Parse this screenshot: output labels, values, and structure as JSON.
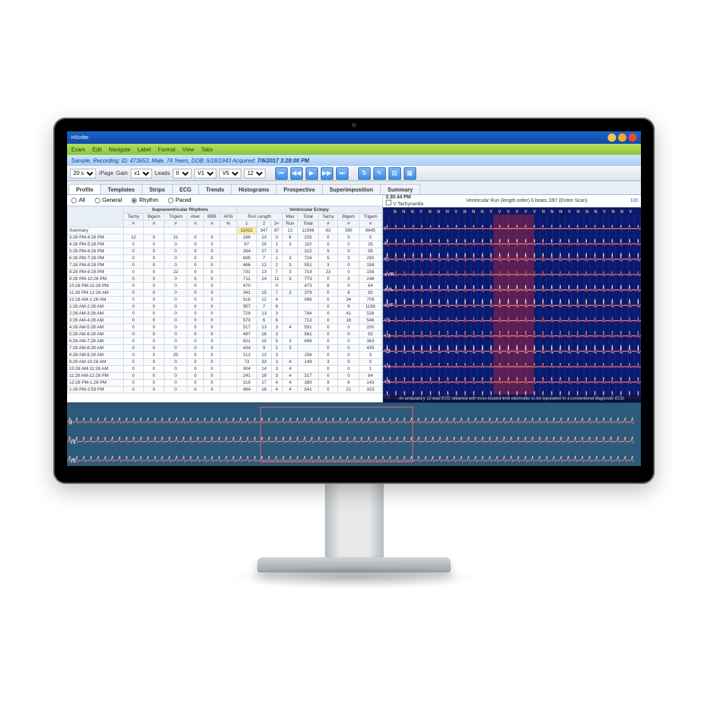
{
  "app_title": "HScribe",
  "menus": [
    "Exam",
    "Edit",
    "Navigate",
    "Label",
    "Format",
    "View",
    "Tabs"
  ],
  "patient_info": "Sample, Recording; ID: 473653; Male, 74 Years, DOB: 5/18/1943 Acquired:",
  "acquired": "7/6/2017 3:28:00 PM",
  "toolbar": {
    "page_sel": "20 s",
    "page_lbl": "/Page",
    "gain_lbl": "Gain",
    "gain_sel": "x1",
    "leads_lbl": "Leads",
    "lead1": "II",
    "lead2": "V1",
    "lead3": "V5",
    "lead_ct": "12",
    "btn_prevall": "⏮",
    "btn_prev": "◀◀",
    "btn_play": "▶",
    "btn_next": "▶▶",
    "btn_nextall": "⏭",
    "btn_scan": "⇅",
    "btn_tool1": "✎",
    "btn_tool2": "▤",
    "btn_tool3": "▦"
  },
  "main_tabs": [
    "Profile",
    "Templates",
    "Strips",
    "ECG",
    "Trends",
    "Histograms",
    "Prospective",
    "Superimposition",
    "Summary"
  ],
  "active_tab": 0,
  "left": {
    "radios": [
      "All",
      "General",
      "Rhythm",
      "Paced"
    ],
    "radio_sel": 2,
    "group_hdrs": [
      "",
      "Supraventricular Rhythms",
      "Ventricular Ectopy"
    ],
    "sub_hdrs": [
      "",
      "Tachy",
      "Bigem",
      "Trigem",
      "Aber",
      "BBB",
      "AFib",
      "Run Length",
      "Max",
      "Tachy",
      "Bigem",
      "Trigem"
    ],
    "sub2_hdrs": [
      "",
      "#",
      "#",
      "#",
      "#",
      "#",
      "%",
      "1",
      "2",
      "3+",
      "Run",
      "Total",
      "#",
      "#",
      "#"
    ],
    "rows": [
      {
        "lbl": "Summary",
        "v": [
          "",
          "",
          "",
          "",
          "",
          "",
          "11021",
          "347",
          "87",
          "12",
          "11996",
          "83",
          "390",
          "6645"
        ]
      },
      {
        "lbl": "3:28 PM-4:28 PM",
        "v": [
          "12",
          "0",
          "21",
          "0",
          "0",
          "",
          "199",
          "13",
          "0",
          "6",
          "225",
          "0",
          "0",
          "0"
        ]
      },
      {
        "lbl": "4:28 PM-5:28 PM",
        "v": [
          "0",
          "0",
          "0",
          "0",
          "0",
          "",
          "67",
          "20",
          "1",
          "3",
          "110",
          "0",
          "0",
          "25"
        ]
      },
      {
        "lbl": "5:28 PM-6:28 PM",
        "v": [
          "0",
          "0",
          "0",
          "0",
          "0",
          "",
          "264",
          "17",
          "3",
          "",
          "322",
          "5",
          "0",
          "55"
        ]
      },
      {
        "lbl": "6:28 PM-7:28 PM",
        "v": [
          "0",
          "0",
          "0",
          "0",
          "0",
          "",
          "695",
          "7",
          "1",
          "3",
          "724",
          "5",
          "0",
          "290"
        ]
      },
      {
        "lbl": "7:28 PM-8:28 PM",
        "v": [
          "0",
          "0",
          "0",
          "0",
          "0",
          "",
          "466",
          "12",
          "2",
          "3",
          "551",
          "3",
          "0",
          "158"
        ]
      },
      {
        "lbl": "8:28 PM-9:28 PM",
        "v": [
          "0",
          "0",
          "22",
          "0",
          "0",
          "",
          "731",
          "13",
          "7",
          "3",
          "719",
          "23",
          "0",
          "158"
        ]
      },
      {
        "lbl": "9:28 PM-10:28 PM",
        "v": [
          "0",
          "0",
          "0",
          "0",
          "0",
          "",
          "711",
          "14",
          "11",
          "3",
          "773",
          "0",
          "0",
          "248"
        ]
      },
      {
        "lbl": "10:28 PM-11:28 PM",
        "v": [
          "0",
          "0",
          "0",
          "0",
          "0",
          "",
          "470",
          "",
          "0",
          "",
          "473",
          "8",
          "0",
          "64"
        ]
      },
      {
        "lbl": "11:28 PM-12:28 AM",
        "v": [
          "0",
          "0",
          "0",
          "0",
          "0",
          "",
          "341",
          "15",
          "7",
          "3",
          "379",
          "0",
          "8",
          "92"
        ]
      },
      {
        "lbl": "12:28 AM-1:28 AM",
        "v": [
          "0",
          "0",
          "0",
          "0",
          "0",
          "",
          "918",
          "12",
          "4",
          "",
          "996",
          "0",
          "34",
          "709"
        ]
      },
      {
        "lbl": "1:28 AM-2:28 AM",
        "v": [
          "0",
          "0",
          "0",
          "0",
          "0",
          "",
          "957",
          "7",
          "9",
          "",
          "",
          "0",
          "9",
          "1156"
        ]
      },
      {
        "lbl": "2:28 AM-3:28 AM",
        "v": [
          "0",
          "0",
          "0",
          "0",
          "0",
          "",
          "729",
          "13",
          "3",
          "",
          "784",
          "0",
          "41",
          "526"
        ]
      },
      {
        "lbl": "3:28 AM-4:28 AM",
        "v": [
          "0",
          "0",
          "0",
          "0",
          "0",
          "",
          "573",
          "6",
          "6",
          "",
          "713",
          "0",
          "18",
          "546"
        ]
      },
      {
        "lbl": "4:28 AM-5:28 AM",
        "v": [
          "0",
          "0",
          "0",
          "0",
          "0",
          "",
          "517",
          "13",
          "3",
          "4",
          "591",
          "0",
          "0",
          "200"
        ]
      },
      {
        "lbl": "5:28 AM-6:28 AM",
        "v": [
          "0",
          "0",
          "0",
          "0",
          "0",
          "",
          "497",
          "16",
          "3",
          "",
          "561",
          "0",
          "0",
          "92"
        ]
      },
      {
        "lbl": "6:28 AM-7:28 AM",
        "v": [
          "0",
          "0",
          "0",
          "0",
          "0",
          "",
          "621",
          "10",
          "5",
          "3",
          "698",
          "0",
          "0",
          "363"
        ]
      },
      {
        "lbl": "7:28 AM-8:28 AM",
        "v": [
          "0",
          "0",
          "0",
          "0",
          "0",
          "",
          "434",
          "9",
          "2",
          "3",
          "",
          "0",
          "0",
          "435"
        ]
      },
      {
        "lbl": "8:28 AM-9:28 AM",
        "v": [
          "0",
          "0",
          "29",
          "0",
          "0",
          "",
          "213",
          "13",
          "3",
          "",
          "256",
          "0",
          "0",
          "3"
        ]
      },
      {
        "lbl": "9:28 AM-10:28 AM",
        "v": [
          "0",
          "0",
          "0",
          "0",
          "0",
          "",
          "73",
          "33",
          "3",
          "4",
          "149",
          "3",
          "0",
          "0"
        ]
      },
      {
        "lbl": "10:28 AM-11:28 AM",
        "v": [
          "0",
          "0",
          "0",
          "0",
          "0",
          "",
          "304",
          "14",
          "3",
          "4",
          "",
          "0",
          "0",
          "1"
        ]
      },
      {
        "lbl": "11:28 AM-12:28 PM",
        "v": [
          "0",
          "0",
          "0",
          "0",
          "0",
          "",
          "241",
          "18",
          "3",
          "4",
          "317",
          "0",
          "0",
          "64"
        ]
      },
      {
        "lbl": "12:28 PM-1:28 PM",
        "v": [
          "0",
          "0",
          "0",
          "0",
          "0",
          "",
          "319",
          "17",
          "4",
          "4",
          "380",
          "9",
          "8",
          "143"
        ]
      },
      {
        "lbl": "1:28 PM-2:59 PM",
        "v": [
          "0",
          "0",
          "0",
          "0",
          "0",
          "",
          "484",
          "18",
          "4",
          "4",
          "541",
          "0",
          "21",
          "323"
        ]
      }
    ]
  },
  "right": {
    "time": "3:30:44 PM",
    "title": "Ventricular Run (length order) 6 beats",
    "count": "2/87 (Entire Scan)",
    "idx": "100",
    "chk": "V Tachycardia",
    "leads": [
      "I",
      "II",
      "III",
      "aVR",
      "aVL",
      "aVF",
      "V1",
      "V2",
      "V3",
      "V4",
      "V5",
      "V6"
    ],
    "beats": "N N N V N N N V N N N V V V V V V N N N V N N N V N N V",
    "disclaimer": "An ambulatory 12-lead ECG obtained with torso-located limb electrodes is not equivalent to a conventional diagnostic ECG.",
    "colors": {
      "bg": "#0a1a6e",
      "grid": "#3c4fb0",
      "wave_white": "#ffffff",
      "wave_red": "#d83a3a",
      "highlight": "#a8243a"
    }
  },
  "bottom": {
    "leads": [
      "II",
      "V1",
      "V5"
    ],
    "bg": "#2d5a7b"
  }
}
